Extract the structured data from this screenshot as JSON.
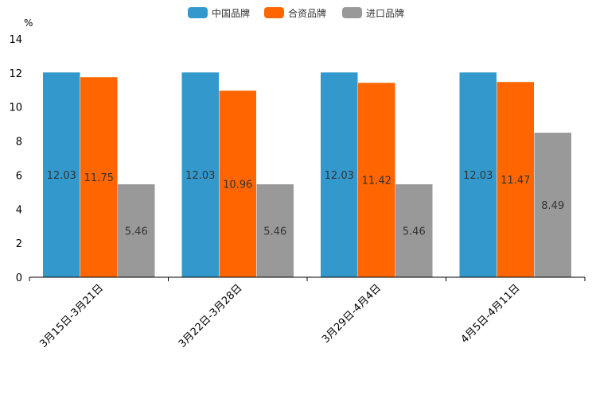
{
  "chart_data": {
    "type": "bar",
    "title": "",
    "unit": "%",
    "categories": [
      "3月15日-3月21日",
      "3月22日-3月28日",
      "3月29日-4月4日",
      "4月5日-4月11日"
    ],
    "series": [
      {
        "name": "中国品牌",
        "color": "#3399CC",
        "values": [
          12.03,
          12.03,
          12.03,
          12.03
        ]
      },
      {
        "name": "合资品牌",
        "color": "#FF6600",
        "values": [
          11.75,
          10.96,
          11.42,
          11.47
        ]
      },
      {
        "name": "进口品牌",
        "color": "#999999",
        "values": [
          5.46,
          5.46,
          5.46,
          8.49
        ]
      }
    ],
    "ylim": [
      0,
      14
    ],
    "yticks": [
      0,
      2,
      4,
      6,
      8,
      10,
      12,
      14
    ],
    "xlabel": "",
    "ylabel": "%",
    "legend_position": "top-center",
    "grid": false
  }
}
